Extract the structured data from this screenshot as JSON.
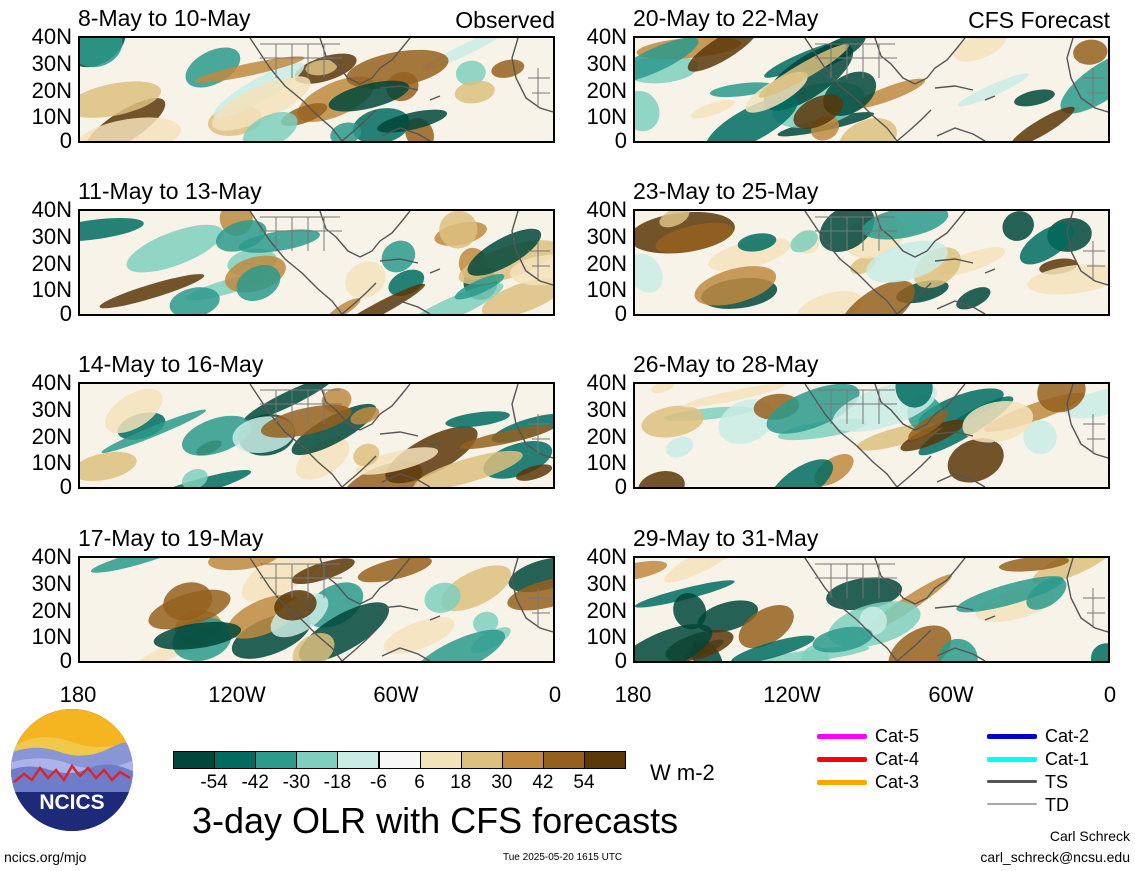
{
  "panels": [
    {
      "title": "8-May to 10-May",
      "label": "Observed",
      "seed": 11
    },
    {
      "title": "11-May to 13-May",
      "label": "",
      "seed": 23
    },
    {
      "title": "14-May to 16-May",
      "label": "",
      "seed": 37
    },
    {
      "title": "17-May to 19-May",
      "label": "",
      "seed": 41
    },
    {
      "title": "20-May to 22-May",
      "label": "CFS Forecast",
      "seed": 53
    },
    {
      "title": "23-May to 25-May",
      "label": "",
      "seed": 67
    },
    {
      "title": "26-May to 28-May",
      "label": "",
      "seed": 71
    },
    {
      "title": "29-May to 31-May",
      "label": "",
      "seed": 89
    }
  ],
  "lat_labels": [
    "40N",
    "30N",
    "20N",
    "10N",
    "0"
  ],
  "lon_labels": [
    "180",
    "120W",
    "60W",
    "0"
  ],
  "colorbar": {
    "colors": [
      "#00463a",
      "#006b60",
      "#2c9a8c",
      "#7fcfbe",
      "#c9ece4",
      "#f7f7f7",
      "#f4e2bb",
      "#dcc07f",
      "#bf8a3f",
      "#95601e",
      "#5a3608"
    ],
    "labels": [
      "-54",
      "-42",
      "-30",
      "-18",
      "-6",
      "6",
      "18",
      "30",
      "42",
      "54"
    ],
    "units": "W m-2"
  },
  "legend": [
    {
      "label": "Cat-5",
      "color": "#ff00ff"
    },
    {
      "label": "Cat-4",
      "color": "#ff0000"
    },
    {
      "label": "Cat-3",
      "color": "#ffa500"
    },
    {
      "label": "Cat-2",
      "color": "#0000cc"
    },
    {
      "label": "Cat-1",
      "color": "#00ffff"
    },
    {
      "label": "TS",
      "color": "#555555"
    },
    {
      "label": "TD",
      "color": "#aaaaaa"
    }
  ],
  "logo": {
    "text": "NCICS"
  },
  "main_title": "3-day OLR with CFS forecasts",
  "footer": {
    "url": "ncics.org/mjo",
    "timestamp": "Tue 2025-05-20 1615 UTC",
    "author": "Carl Schreck",
    "email": "carl_schreck@ncsu.edu"
  }
}
